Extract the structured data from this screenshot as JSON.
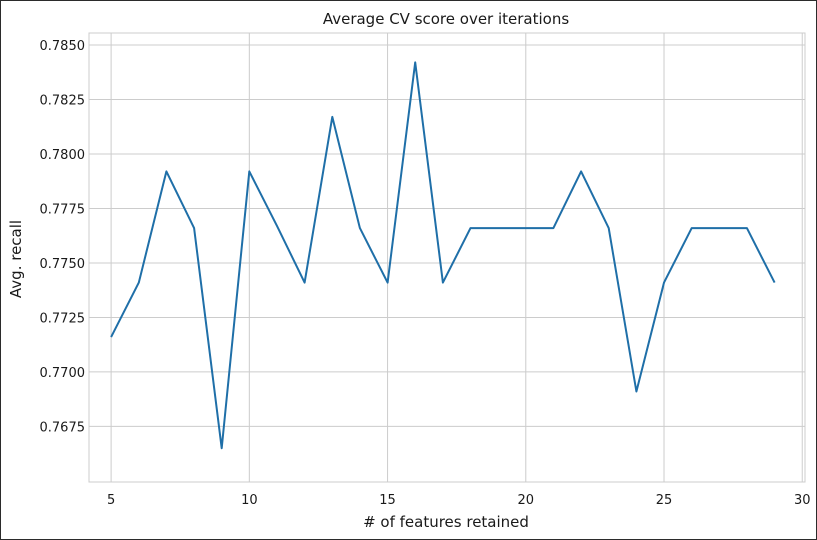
{
  "chart_data": {
    "type": "line",
    "title": "Average CV score over iterations",
    "xlabel": "# of features retained",
    "ylabel": "Avg. recall",
    "xlim": [
      4.2,
      30.1
    ],
    "ylim": [
      0.76495,
      0.78555
    ],
    "xticks": [
      5,
      10,
      15,
      20,
      25,
      30
    ],
    "yticks": [
      0.7675,
      0.77,
      0.7725,
      0.775,
      0.7775,
      0.78,
      0.7825,
      0.785
    ],
    "ytick_labels": [
      "0.7675",
      "0.7700",
      "0.7725",
      "0.7750",
      "0.7775",
      "0.7800",
      "0.7825",
      "0.7850"
    ],
    "grid": true,
    "legend": "none",
    "series": [
      {
        "color": "#1f6fa8",
        "x": [
          5,
          6,
          7,
          8,
          9,
          10,
          11,
          12,
          13,
          14,
          15,
          16,
          17,
          18,
          19,
          20,
          21,
          22,
          23,
          24,
          25,
          26,
          27,
          28,
          29
        ],
        "y": [
          0.7716,
          0.7741,
          0.7792,
          0.7766,
          0.7665,
          0.7792,
          0.7767,
          0.7741,
          0.7817,
          0.7766,
          0.7741,
          0.7842,
          0.7741,
          0.7766,
          0.7766,
          0.7766,
          0.7766,
          0.7792,
          0.7766,
          0.7691,
          0.7741,
          0.7766,
          0.7766,
          0.7766,
          0.7741
        ]
      }
    ]
  }
}
